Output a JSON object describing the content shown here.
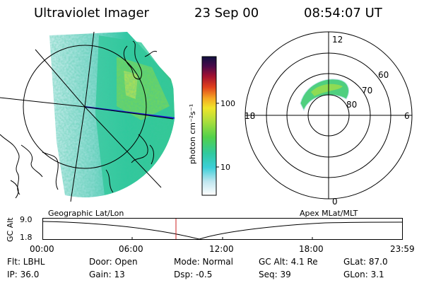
{
  "header": {
    "instrument": "Ultraviolet Imager",
    "date": "23 Sep 00",
    "time": "08:54:07 UT"
  },
  "colorbar": {
    "unit_label": "photon cm⁻²s⁻¹",
    "ticks": [
      "100",
      "10"
    ]
  },
  "polar": {
    "mlt_labels": {
      "top": "12",
      "left": "18",
      "right": "6",
      "bottom": "0"
    },
    "lat_labels": [
      "60",
      "70",
      "80"
    ]
  },
  "timeline": {
    "left_title": "Geographic Lat/Lon",
    "right_title": "Apex MLat/MLT",
    "axis_label": "GC Alt",
    "y_ticks": [
      "9.0",
      "1.8"
    ],
    "x_ticks": [
      "00:00",
      "06:00",
      "12:00",
      "18:00",
      "23:59"
    ],
    "colors": {
      "marker": "#cc2222"
    }
  },
  "info": {
    "flt": "Flt: LBHL",
    "ip": "IP: 36.0",
    "door": "Door: Open",
    "gain": "Gain: 13",
    "mode": "Mode: Normal",
    "dsp": "Dsp:    -0.5",
    "gc_alt": "GC Alt: 4.1 Re",
    "seq": "Seq: 39",
    "glat": "GLat:  87.0",
    "glon": "GLon:    3.1"
  }
}
